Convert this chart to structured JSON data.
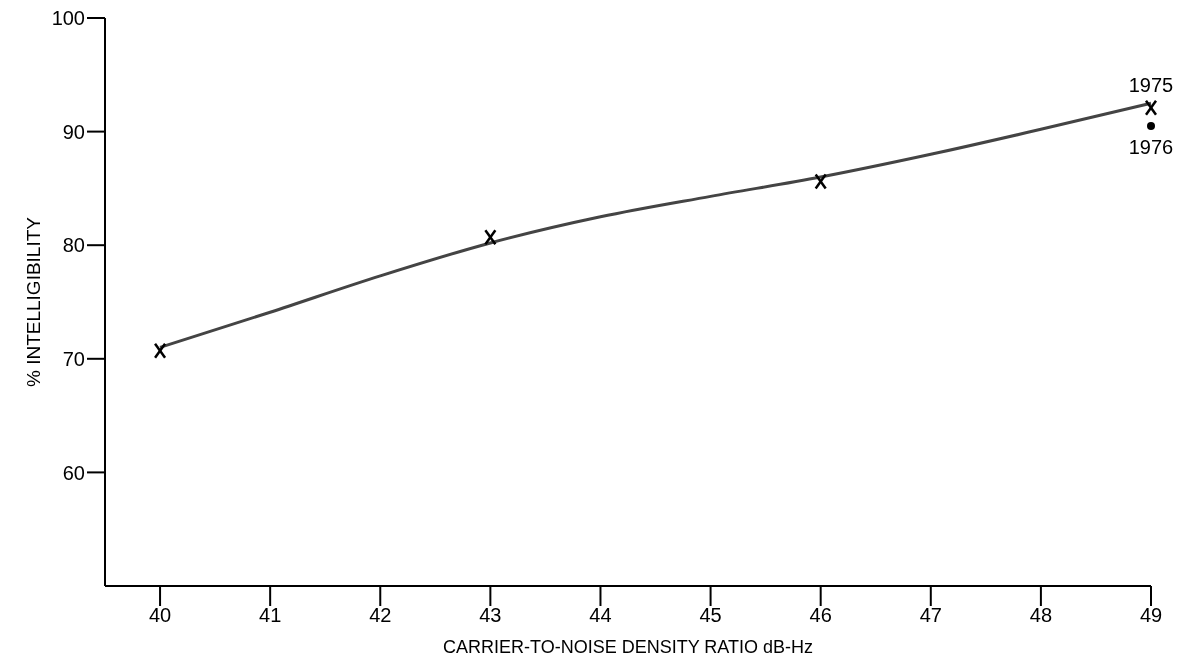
{
  "chart_data": {
    "type": "line",
    "xlabel": "CARRIER-TO-NOISE DENSITY RATIO dB-Hz",
    "ylabel": "% INTELLIGIBILITY",
    "xlim": [
      39.5,
      49
    ],
    "xticks": [
      40,
      41,
      42,
      43,
      44,
      45,
      46,
      47,
      48,
      49
    ],
    "ylim": [
      50,
      100
    ],
    "yticks": [
      60,
      70,
      80,
      90,
      100
    ],
    "series": [
      {
        "type": "line",
        "color": "#444444",
        "marker": "none",
        "x": [
          40,
          41,
          42,
          43,
          44,
          45,
          46,
          47,
          48,
          49
        ],
        "values": [
          71,
          74.1,
          77.3,
          80.2,
          82.5,
          84.3,
          86,
          88,
          90.2,
          92.5
        ]
      },
      {
        "type": "scatter",
        "name": "1975",
        "color": "#000000",
        "marker": "cross",
        "x": [
          40,
          43,
          46,
          49
        ],
        "values": [
          70.7,
          80.7,
          85.6,
          92.1
        ]
      },
      {
        "type": "scatter",
        "name": "1976",
        "color": "#000000",
        "marker": "circle",
        "x": [
          49
        ],
        "values": [
          90.5
        ]
      }
    ]
  }
}
